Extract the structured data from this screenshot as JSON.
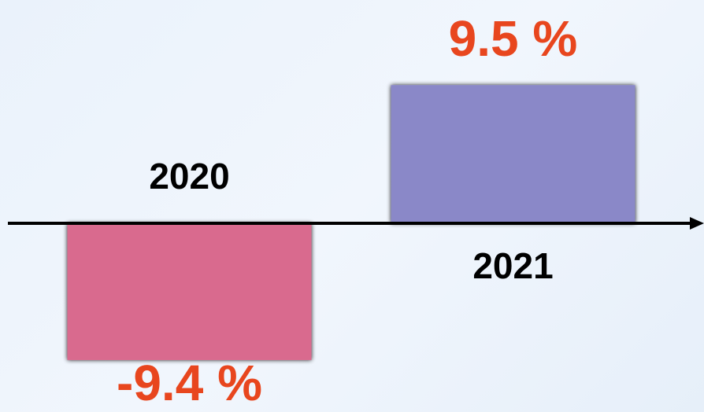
{
  "chart_data": {
    "type": "bar",
    "categories": [
      "2020",
      "2021"
    ],
    "values": [
      -9.4,
      9.5
    ],
    "value_labels": [
      "-9.4 %",
      "9.5 %"
    ],
    "colors": [
      "#d96a8e",
      "#8a88c8"
    ],
    "ylim": [
      -16,
      16
    ]
  }
}
